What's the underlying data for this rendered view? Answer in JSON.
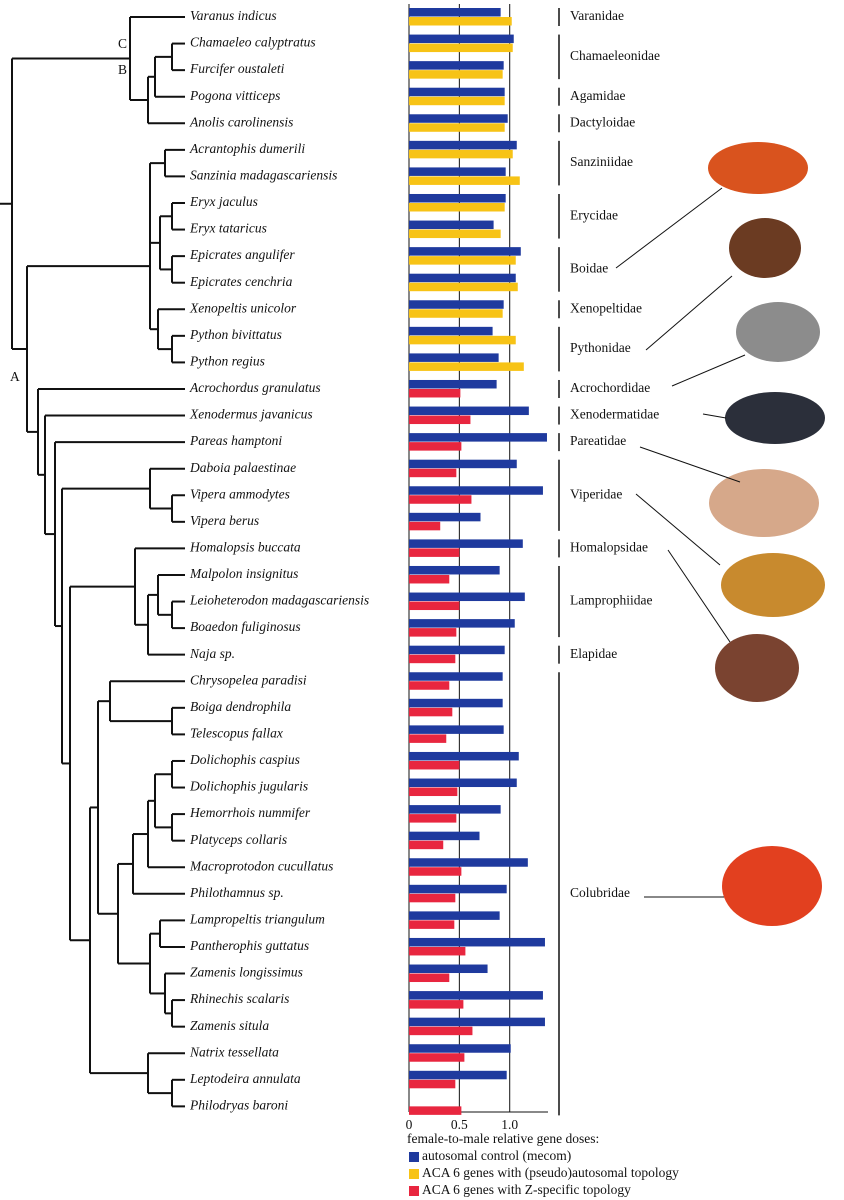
{
  "chart_data": {
    "type": "bar",
    "orientation": "horizontal",
    "categories": [
      "Varanus indicus",
      "Chamaeleo calyptratus",
      "Furcifer oustaleti",
      "Pogona vitticeps",
      "Anolis carolinensis",
      "Acrantophis dumerili",
      "Sanzinia madagascariensis",
      "Eryx jaculus",
      "Eryx tataricus",
      "Epicrates angulifer",
      "Epicrates cenchria",
      "Xenopeltis unicolor",
      "Python bivittatus",
      "Python regius",
      "Acrochordus granulatus",
      "Xenodermus javanicus",
      "Pareas hamptoni",
      "Daboia palaestinae",
      "Vipera ammodytes",
      "Vipera berus",
      "Homalopsis buccata",
      "Malpolon insignitus",
      "Leioheterodon madagascariensis",
      "Boaedon fuliginosus",
      "Naja sp.",
      "Chrysopelea paradisi",
      "Boiga dendrophila",
      "Telescopus fallax",
      "Dolichophis caspius",
      "Dolichophis jugularis",
      "Hemorrhois nummifer",
      "Platyceps collaris",
      "Macroprotodon cucullatus",
      "Philothamnus sp.",
      "Lampropeltis triangulum",
      "Pantherophis guttatus",
      "Zamenis longissimus",
      "Rhinechis scalaris",
      "Zamenis situla",
      "Natrix tessellata",
      "Leptodeira annulata",
      "Philodryas baroni"
    ],
    "xlim": [
      0,
      1.4
    ],
    "xticks": [
      0,
      0.5,
      {
        "value": 1,
        "label": "1.0"
      }
    ],
    "grid": true,
    "legend_title": "female-to-male relative gene doses:",
    "series": [
      {
        "name": "autosomal control (mecom)",
        "color": "#1f3a9e",
        "values": [
          0.91,
          1.04,
          0.94,
          0.95,
          0.98,
          1.07,
          0.96,
          0.96,
          0.84,
          1.11,
          1.06,
          0.94,
          0.83,
          0.89,
          0.87,
          1.19,
          1.37,
          1.07,
          1.33,
          0.71,
          1.13,
          0.9,
          1.15,
          1.05,
          0.95,
          0.93,
          0.93,
          0.94,
          1.09,
          1.07,
          0.91,
          0.7,
          1.18,
          0.97,
          0.9,
          1.35,
          0.78,
          1.33,
          1.35,
          1.01,
          0.97,
          null
        ]
      },
      {
        "name": "ACA 6 genes with (pseudo)autosomal topology",
        "color": "#f7c316",
        "values": [
          1.02,
          1.03,
          0.93,
          0.95,
          0.95,
          1.03,
          1.1,
          0.95,
          0.91,
          1.06,
          1.08,
          0.93,
          1.06,
          1.14,
          null,
          null,
          null,
          null,
          null,
          null,
          null,
          null,
          null,
          null,
          null,
          null,
          null,
          null,
          null,
          null,
          null,
          null,
          null,
          null,
          null,
          null,
          null,
          null,
          null,
          null,
          null,
          null
        ]
      },
      {
        "name": "ACA 6 genes with Z-specific topology",
        "color": "#e8263f",
        "values": [
          null,
          null,
          null,
          null,
          null,
          null,
          null,
          null,
          null,
          null,
          null,
          null,
          null,
          null,
          0.51,
          0.61,
          0.52,
          0.47,
          0.62,
          0.31,
          0.5,
          0.4,
          0.5,
          0.47,
          0.46,
          0.4,
          0.43,
          0.37,
          0.5,
          0.48,
          0.47,
          0.34,
          0.52,
          0.46,
          0.45,
          0.56,
          0.4,
          0.54,
          0.63,
          0.55,
          0.46,
          0.52
        ]
      }
    ],
    "families": [
      "Varanidae",
      "Chamaeleonidae",
      "Agamidae",
      "Dactyloidae",
      "Sanziniidae",
      "Erycidae",
      "Boidae",
      "Xenopeltidae",
      "Pythonidae",
      "Acrochordidae",
      "Xenodermatidae",
      "Pareatidae",
      "Viperidae",
      "Homalopsidae",
      "Lamprophiidae",
      "Elapidae",
      "Colubridae"
    ],
    "node_labels": [
      "A",
      "B",
      "C"
    ]
  }
}
